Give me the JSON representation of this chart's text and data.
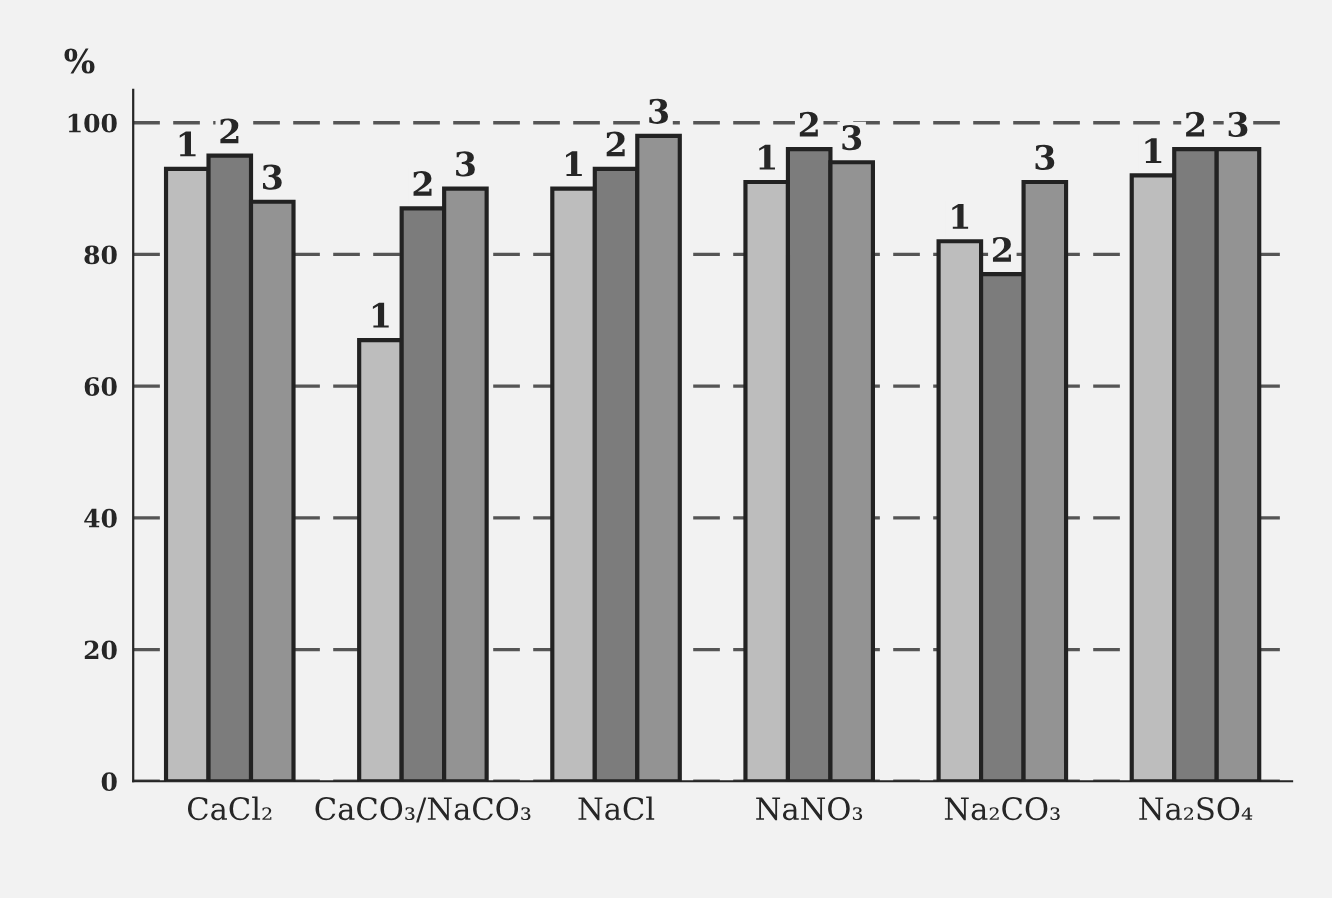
{
  "chart_data": {
    "type": "bar",
    "ylabel": "%",
    "categories": [
      "CaCl₂",
      "CaCO₃/NaCO₃",
      "NaCl",
      "NaNO₃",
      "Na₂CO₃",
      "Na₂SO₄"
    ],
    "series": [
      {
        "name": "1",
        "color": "#bdbdbd",
        "values": [
          93,
          67,
          90,
          91,
          82,
          92
        ]
      },
      {
        "name": "2",
        "color": "#7c7c7c",
        "values": [
          95,
          87,
          93,
          96,
          77,
          96
        ]
      },
      {
        "name": "3",
        "color": "#939393",
        "values": [
          88,
          90,
          98,
          94,
          91,
          96
        ]
      }
    ],
    "ylim": [
      0,
      105
    ],
    "yticks": [
      0,
      20,
      40,
      60,
      80,
      100
    ],
    "grid": "y"
  }
}
